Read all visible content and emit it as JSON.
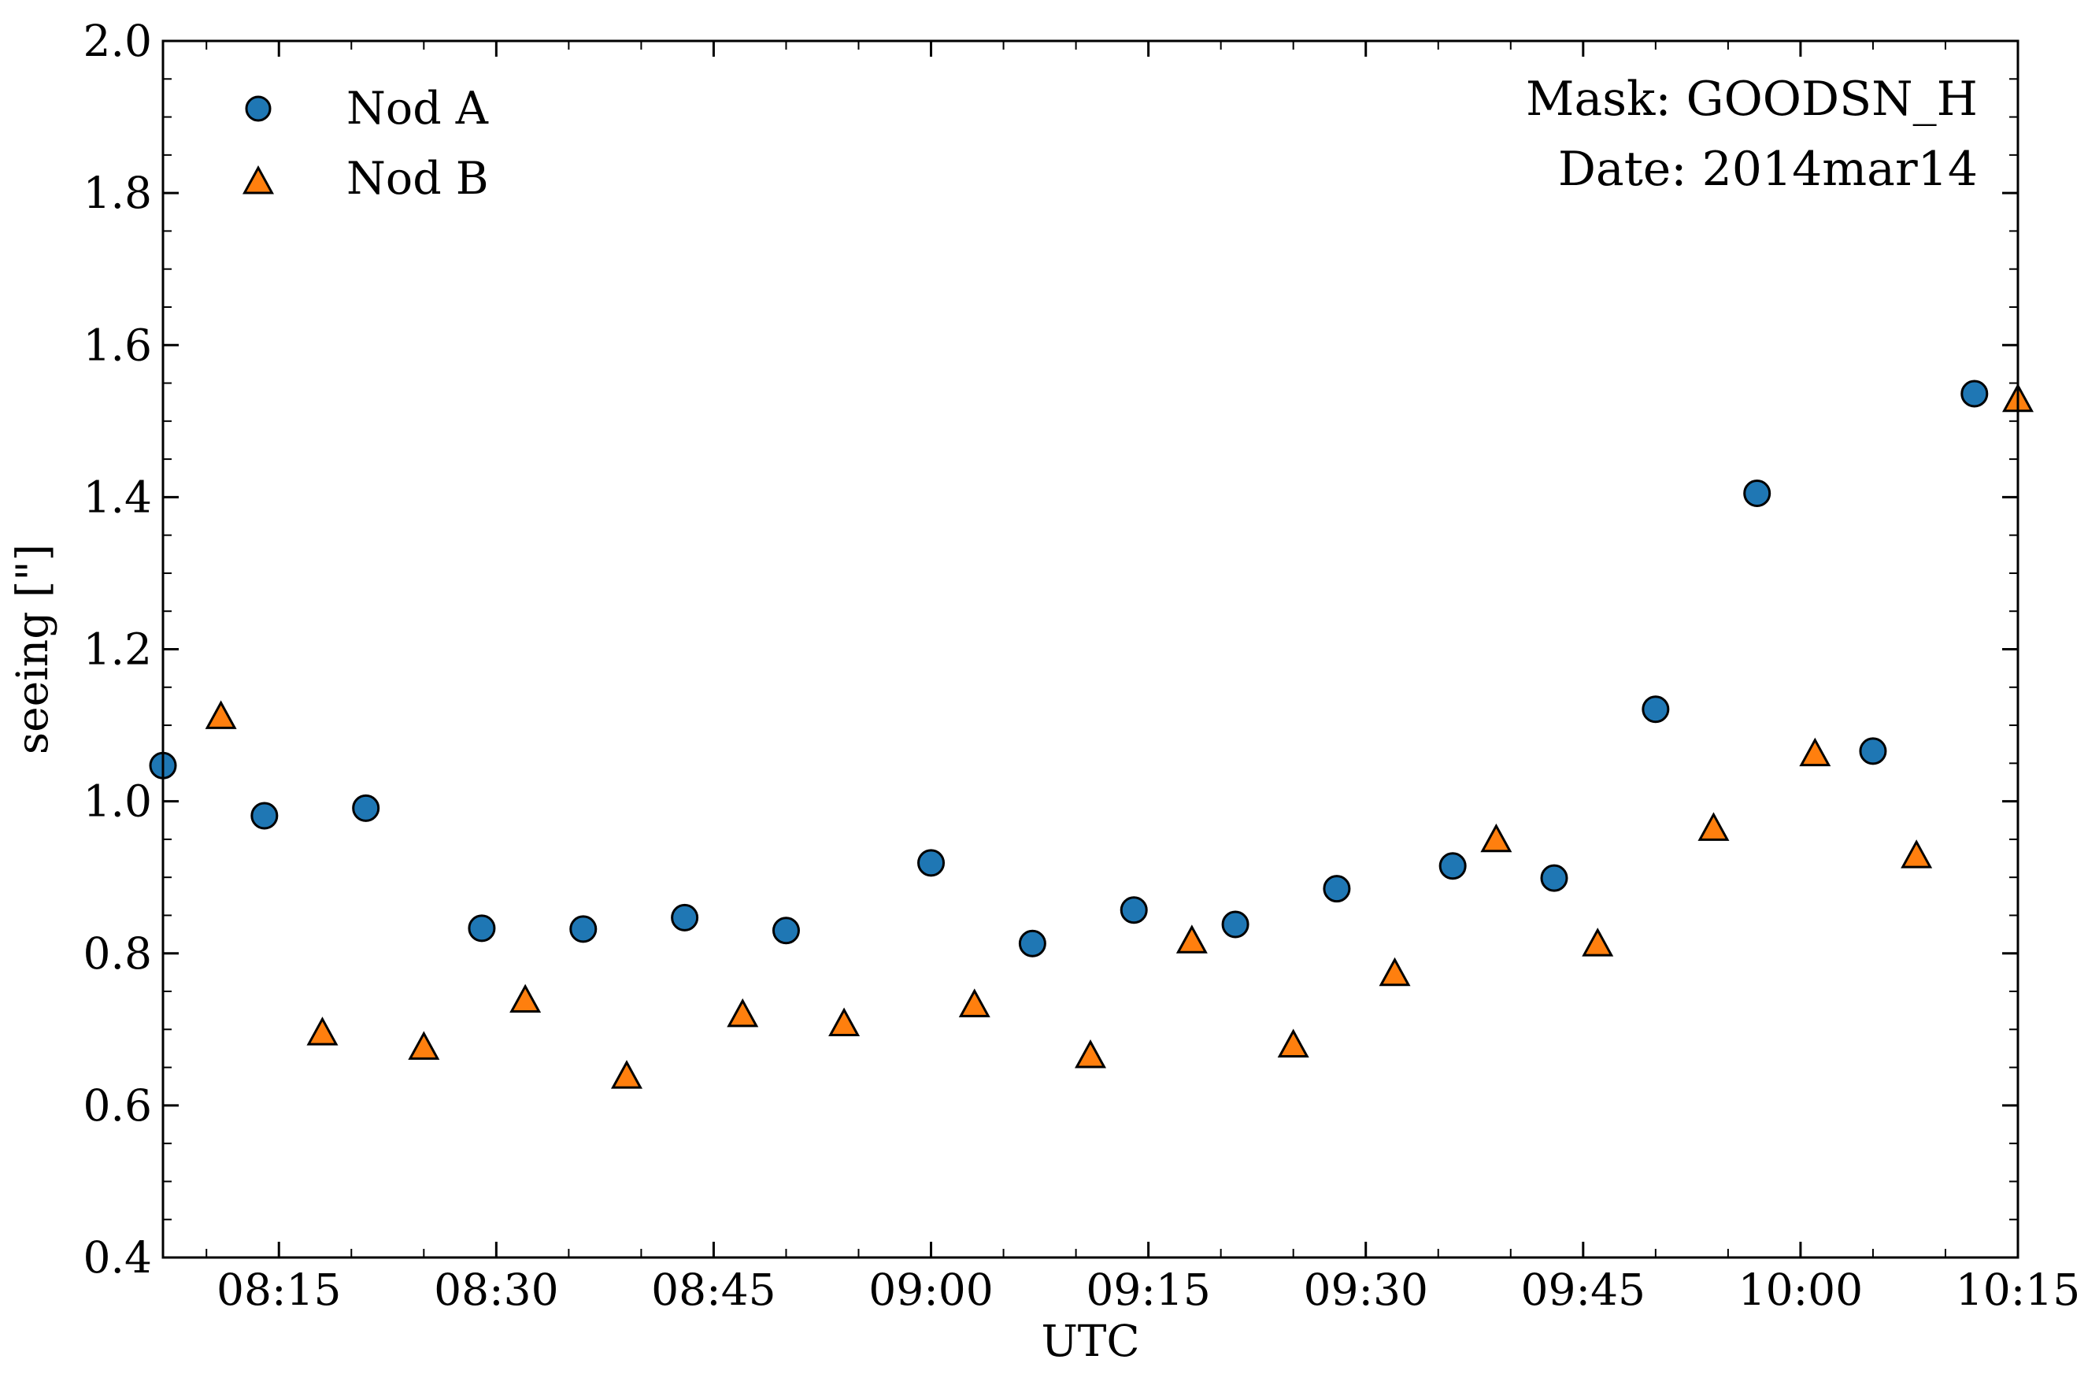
{
  "chart_data": {
    "type": "scatter",
    "xlabel": "UTC",
    "ylabel": "seeing [\"]",
    "ylim": [
      0.4,
      2.0
    ],
    "xlim": [
      "08:07",
      "10:15"
    ],
    "x_ticks": [
      "08:15",
      "08:30",
      "08:45",
      "09:00",
      "09:15",
      "09:30",
      "09:45",
      "10:00",
      "10:15"
    ],
    "y_ticks": [
      "0.4",
      "0.6",
      "0.8",
      "1.0",
      "1.2",
      "1.4",
      "1.6",
      "1.8",
      "2.0"
    ],
    "legend_position": "top-left",
    "grid": false,
    "annotations": [
      "Mask: GOODSN_H",
      "Date: 2014mar14"
    ],
    "series": [
      {
        "name": "Nod A",
        "marker": "circle",
        "color": "#1f77b4",
        "x": [
          "08:07",
          "08:14",
          "08:21",
          "08:29",
          "08:36",
          "08:43",
          "08:50",
          "09:00",
          "09:07",
          "09:14",
          "09:21",
          "09:28",
          "09:36",
          "09:43",
          "09:50",
          "09:57",
          "10:05",
          "10:12"
        ],
        "y": [
          1.047,
          0.981,
          0.991,
          0.833,
          0.832,
          0.847,
          0.83,
          0.919,
          0.813,
          0.857,
          0.838,
          0.885,
          0.915,
          0.899,
          1.121,
          1.405,
          1.066,
          1.536
        ]
      },
      {
        "name": "Nod B",
        "marker": "triangle",
        "color": "#ff7f0e",
        "x": [
          "08:11",
          "08:18",
          "08:25",
          "08:32",
          "08:39",
          "08:47",
          "08:54",
          "09:03",
          "09:11",
          "09:18",
          "09:25",
          "09:32",
          "09:39",
          "09:46",
          "09:54",
          "10:01",
          "10:08",
          "10:15"
        ],
        "y": [
          1.11,
          0.694,
          0.675,
          0.737,
          0.637,
          0.718,
          0.706,
          0.731,
          0.664,
          0.815,
          0.678,
          0.772,
          0.948,
          0.811,
          0.963,
          1.061,
          0.927,
          1.527
        ]
      }
    ]
  }
}
